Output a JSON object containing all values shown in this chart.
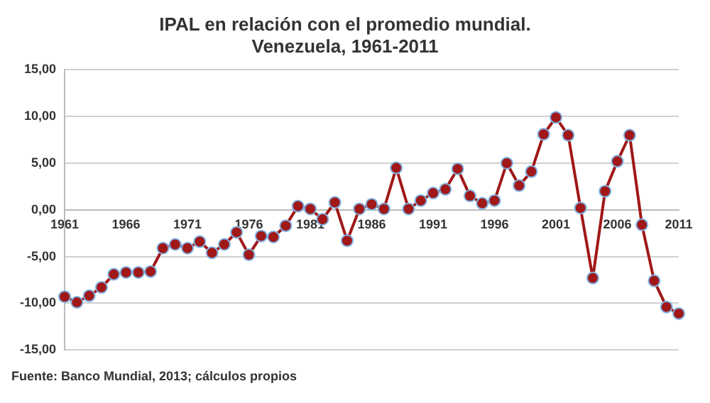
{
  "chart_data": {
    "type": "line",
    "title": "IPAL en relación con el promedio mundial.\nVenezuela, 1961-2011",
    "categories": [
      "1961",
      null,
      null,
      null,
      null,
      "1966",
      null,
      null,
      null,
      null,
      "1971",
      null,
      null,
      null,
      null,
      "1976",
      null,
      null,
      null,
      null,
      "1981",
      null,
      null,
      null,
      null,
      "1986",
      null,
      null,
      null,
      null,
      "1991",
      null,
      null,
      null,
      null,
      "1996",
      null,
      null,
      null,
      null,
      "2001",
      null,
      null,
      null,
      null,
      "2006",
      null,
      null,
      null,
      null,
      "2011"
    ],
    "series": [
      {
        "color": "#a01818",
        "values": [
          -9.3,
          -9.9,
          -9.2,
          -8.3,
          -6.9,
          -6.7,
          -6.7,
          -6.6,
          -4.1,
          -3.7,
          -4.1,
          -3.4,
          -4.6,
          -3.7,
          -2.4,
          -4.8,
          -2.8,
          -2.9,
          -1.7,
          0.4,
          0.1,
          -1.0,
          0.8,
          -3.3,
          0.1,
          0.6,
          0.1,
          4.5,
          0.1,
          1.0,
          1.8,
          2.2,
          4.4,
          1.5,
          0.7,
          1.0,
          5.0,
          2.6,
          4.1,
          8.1,
          9.9,
          8.0,
          0.2,
          -7.3,
          2.0,
          5.2,
          8.0,
          -1.6,
          -7.6,
          -10.4,
          -11.1
        ]
      }
    ],
    "ylim": [
      -15,
      15
    ],
    "yticks": [
      {
        "value": -15,
        "label": "-15,00"
      },
      {
        "value": -10,
        "label": "-10,00"
      },
      {
        "value": -5,
        "label": "-5,00"
      },
      {
        "value": 0,
        "label": "0,00"
      },
      {
        "value": 5,
        "label": "5,00"
      },
      {
        "value": 10,
        "label": "10,00"
      },
      {
        "value": 15,
        "label": "15,00"
      }
    ],
    "grid": "y",
    "marker": "circle",
    "line_style": "solid",
    "legend": false,
    "annotations": [
      "Fuente: Banco Mundial, 2013; cálculos propios"
    ]
  }
}
